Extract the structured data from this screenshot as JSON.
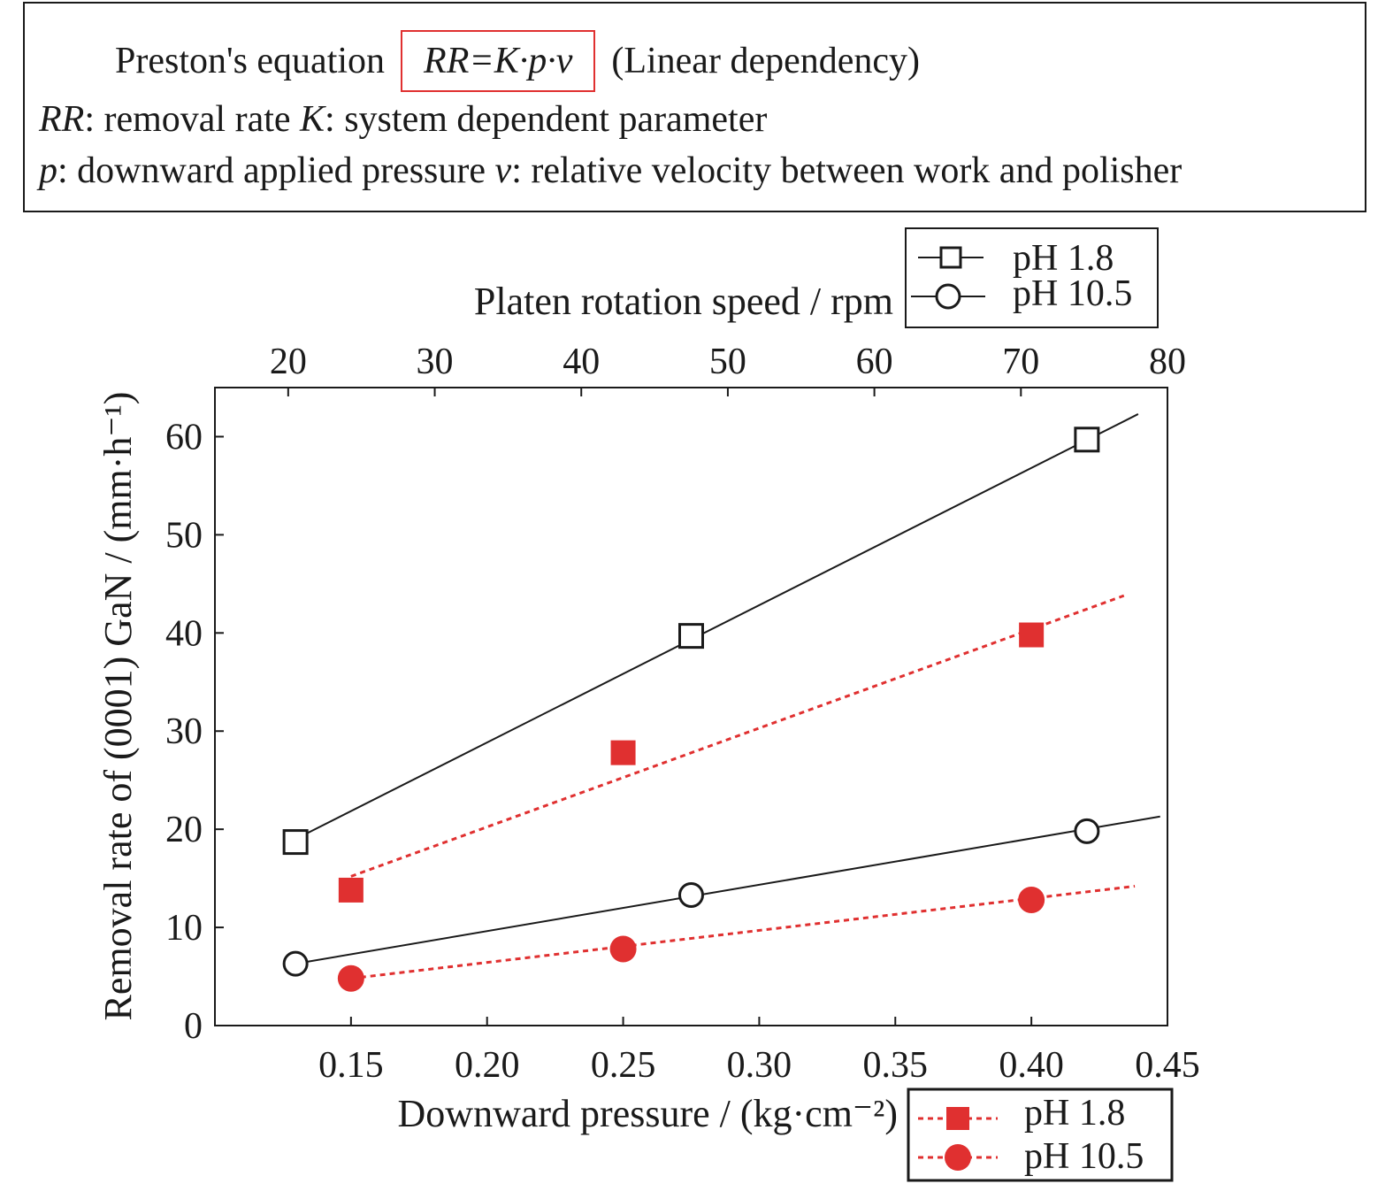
{
  "equation": {
    "prefix": "Preston's equation",
    "formula": "RR=K·p·v",
    "suffix": "(Linear dependency)",
    "def_rr_symbol": "RR",
    "def_rr_text": ": removal rate ",
    "def_k_symbol": "K",
    "def_k_text": ": system dependent parameter",
    "def_p_symbol": "p",
    "def_p_text": ": downward applied pressure ",
    "def_v_symbol": "v",
    "def_v_text": ": relative velocity between work and polisher"
  },
  "colors": {
    "black_series": "#1a1a1a",
    "red_series": "#e03030",
    "axis": "#1a1a1a"
  },
  "chart_data": {
    "type": "scatter",
    "title": "",
    "xlabel": "Downward pressure / (kg·cm⁻²)",
    "x2label": "Platen rotation speed / rpm",
    "ylabel": "Removal rate of (0001) GaN / (mm·h⁻¹)",
    "xlim": [
      0.1,
      0.45
    ],
    "x2lim": [
      15,
      80
    ],
    "ylim": [
      0,
      65
    ],
    "xticks": [
      "0.15",
      "0.20",
      "0.25",
      "0.30",
      "0.35",
      "0.40",
      "0.45"
    ],
    "x2ticks": [
      "20",
      "30",
      "40",
      "50",
      "60",
      "70",
      "80"
    ],
    "yticks": [
      "0",
      "10",
      "20",
      "30",
      "40",
      "50",
      "60"
    ],
    "grid": false,
    "top_axis_series": [
      {
        "name": "pH 1.8",
        "marker": "open-square",
        "color": "#1a1a1a",
        "x": [
          20.5,
          47.5,
          74.5
        ],
        "y": [
          18.7,
          39.7,
          59.7
        ],
        "fit_x": [
          20.5,
          78.0
        ],
        "fit_y": [
          19.0,
          62.3
        ]
      },
      {
        "name": "pH 10.5",
        "marker": "open-circle",
        "color": "#1a1a1a",
        "x": [
          20.5,
          47.5,
          74.5
        ],
        "y": [
          6.3,
          13.3,
          19.8
        ],
        "fit_x": [
          20.5,
          79.5
        ],
        "fit_y": [
          6.3,
          21.3
        ]
      }
    ],
    "bottom_axis_series": [
      {
        "name": "pH 1.8",
        "marker": "filled-square",
        "color": "#e03030",
        "x": [
          0.15,
          0.25,
          0.4
        ],
        "y": [
          13.8,
          27.8,
          39.8
        ],
        "fit_x": [
          0.15,
          0.434
        ],
        "fit_y": [
          15.2,
          43.8
        ]
      },
      {
        "name": "pH 10.5",
        "marker": "filled-circle",
        "color": "#e03030",
        "x": [
          0.15,
          0.25,
          0.4
        ],
        "y": [
          4.8,
          7.8,
          12.8
        ],
        "fit_x": [
          0.15,
          0.438
        ],
        "fit_y": [
          4.8,
          14.2
        ]
      }
    ],
    "legend_top": [
      "pH 1.8",
      "pH 10.5"
    ],
    "legend_bottom": [
      "pH 1.8",
      "pH 10.5"
    ]
  }
}
